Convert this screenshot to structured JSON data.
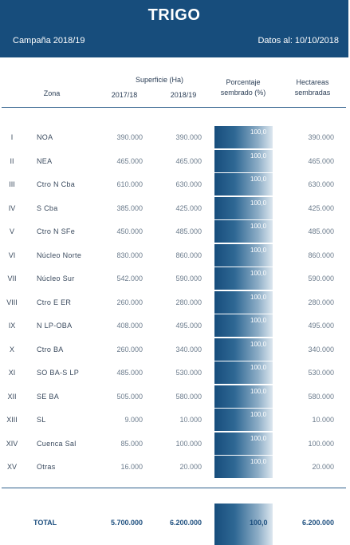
{
  "header": {
    "title": "TRIGO",
    "campaign": "Campaña 2018/19",
    "date": "Datos al: 10/10/2018"
  },
  "columns": {
    "zona": "Zona",
    "superficie": "Superficie (Ha)",
    "year_a": "2017/18",
    "year_b": "2018/19",
    "porcentaje_1": "Porcentaje",
    "porcentaje_2": "sembrado (%)",
    "hectareas_1": "Hectareas",
    "hectareas_2": "sembradas"
  },
  "rows": [
    {
      "num": "I",
      "zona": "NOA",
      "a": "390.000",
      "b": "390.000",
      "pct": "100,0",
      "pct_value": 100,
      "ha": "390.000"
    },
    {
      "num": "II",
      "zona": "NEA",
      "a": "465.000",
      "b": "465.000",
      "pct": "100,0",
      "pct_value": 100,
      "ha": "465.000"
    },
    {
      "num": "III",
      "zona": "Ctro N Cba",
      "a": "610.000",
      "b": "630.000",
      "pct": "100,0",
      "pct_value": 100,
      "ha": "630.000"
    },
    {
      "num": "IV",
      "zona": "S Cba",
      "a": "385.000",
      "b": "425.000",
      "pct": "100,0",
      "pct_value": 100,
      "ha": "425.000"
    },
    {
      "num": "V",
      "zona": "Ctro N SFe",
      "a": "450.000",
      "b": "485.000",
      "pct": "100,0",
      "pct_value": 100,
      "ha": "485.000"
    },
    {
      "num": "VI",
      "zona": "Núcleo Norte",
      "a": "830.000",
      "b": "860.000",
      "pct": "100,0",
      "pct_value": 100,
      "ha": "860.000"
    },
    {
      "num": "VII",
      "zona": "Núcleo Sur",
      "a": "542.000",
      "b": "590.000",
      "pct": "100,0",
      "pct_value": 100,
      "ha": "590.000"
    },
    {
      "num": "VIII",
      "zona": "Ctro E ER",
      "a": "260.000",
      "b": "280.000",
      "pct": "100,0",
      "pct_value": 100,
      "ha": "280.000"
    },
    {
      "num": "IX",
      "zona": "N LP-OBA",
      "a": "408.000",
      "b": "495.000",
      "pct": "100,0",
      "pct_value": 100,
      "ha": "495.000"
    },
    {
      "num": "X",
      "zona": "Ctro BA",
      "a": "260.000",
      "b": "340.000",
      "pct": "100,0",
      "pct_value": 100,
      "ha": "340.000"
    },
    {
      "num": "XI",
      "zona": "SO BA-S LP",
      "a": "485.000",
      "b": "530.000",
      "pct": "100,0",
      "pct_value": 100,
      "ha": "530.000"
    },
    {
      "num": "XII",
      "zona": "SE BA",
      "a": "505.000",
      "b": "580.000",
      "pct": "100,0",
      "pct_value": 100,
      "ha": "580.000"
    },
    {
      "num": "XIII",
      "zona": "SL",
      "a": "9.000",
      "b": "10.000",
      "pct": "100,0",
      "pct_value": 100,
      "ha": "10.000"
    },
    {
      "num": "XIV",
      "zona": "Cuenca Sal",
      "a": "85.000",
      "b": "100.000",
      "pct": "100,0",
      "pct_value": 100,
      "ha": "100.000"
    },
    {
      "num": "XV",
      "zona": "Otras",
      "a": "16.000",
      "b": "20.000",
      "pct": "100,0",
      "pct_value": 100,
      "ha": "20.000"
    }
  ],
  "total": {
    "label": "TOTAL",
    "a": "5.700.000",
    "b": "6.200.000",
    "pct": "100,0",
    "ha": "6.200.000"
  },
  "colors": {
    "header_bg": "#174d7c",
    "bar_dark": "#174d7c",
    "bar_light": "#dde7ef"
  }
}
